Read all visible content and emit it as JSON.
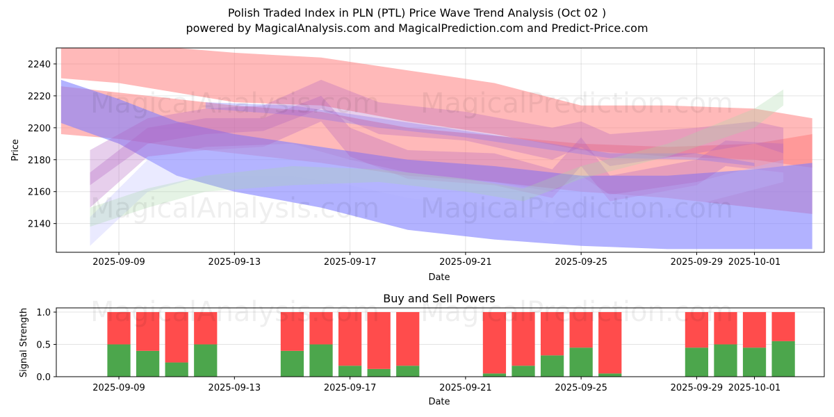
{
  "title": "Polish Traded Index in PLN (PTL) Price Wave Trend Analysis (Oct 02 )",
  "subtitle": "powered by MagicalAnalysis.com and MagicalPrediction.com and Predict-Price.com",
  "watermarks": [
    "MagicalAnalysis.com",
    "MagicalPrediction.com"
  ],
  "colors": {
    "sell": "#ff4c4c",
    "buy": "#4ca64c",
    "band_red": "#ff7f7f",
    "band_blue": "#7f7fff",
    "band_green": "#a8d8a8"
  },
  "chart_data": [
    {
      "type": "area",
      "title": "",
      "xlabel": "Date",
      "ylabel": "Price",
      "ylim": [
        2122,
        2250
      ],
      "xlim": [
        "2025-09-06T20:00",
        "2025-10-03T10:00"
      ],
      "grid": true,
      "x_ticks": [
        "2025-09-09",
        "2025-09-13",
        "2025-09-17",
        "2025-09-21",
        "2025-09-25",
        "2025-09-29",
        "2025-10-01"
      ],
      "y_ticks": [
        2140,
        2160,
        2180,
        2200,
        2220,
        2240
      ],
      "series": [
        {
          "name": "red-band-top",
          "color": "red",
          "alpha": 0.55,
          "x": [
            "2025-09-07",
            "2025-09-09",
            "2025-09-11",
            "2025-09-13",
            "2025-09-16",
            "2025-09-19",
            "2025-09-22",
            "2025-09-25",
            "2025-09-28",
            "2025-10-01",
            "2025-10-03"
          ],
          "upper": [
            2252,
            2251,
            2250,
            2247,
            2244,
            2236,
            2228,
            2214,
            2214,
            2212,
            2206
          ],
          "lower": [
            2231,
            2228,
            2222,
            2216,
            2214,
            2204,
            2196,
            2186,
            2182,
            2180,
            2175
          ]
        },
        {
          "name": "red-band-mid",
          "color": "red",
          "alpha": 0.55,
          "x": [
            "2025-09-07",
            "2025-09-09",
            "2025-09-11",
            "2025-09-13",
            "2025-09-16",
            "2025-09-19",
            "2025-09-22",
            "2025-09-25",
            "2025-09-28",
            "2025-10-01",
            "2025-10-03"
          ],
          "upper": [
            2226,
            2222,
            2218,
            2214,
            2210,
            2200,
            2195,
            2190,
            2188,
            2190,
            2196
          ],
          "lower": [
            2196,
            2193,
            2188,
            2184,
            2178,
            2170,
            2166,
            2160,
            2156,
            2150,
            2146
          ]
        },
        {
          "name": "blue-band-main",
          "color": "blue",
          "alpha": 0.6,
          "x": [
            "2025-09-07",
            "2025-09-09",
            "2025-09-11",
            "2025-09-13",
            "2025-09-16",
            "2025-09-19",
            "2025-09-22",
            "2025-09-25",
            "2025-09-28",
            "2025-10-01",
            "2025-10-03"
          ],
          "upper": [
            2230,
            2218,
            2204,
            2196,
            2188,
            2180,
            2176,
            2170,
            2170,
            2174,
            2178
          ],
          "lower": [
            2203,
            2190,
            2170,
            2160,
            2150,
            2136,
            2130,
            2126,
            2124,
            2124,
            2124
          ]
        },
        {
          "name": "blue-thin-band",
          "color": "blue",
          "alpha": 0.35,
          "x": [
            "2025-09-12",
            "2025-09-15",
            "2025-09-18",
            "2025-09-21",
            "2025-09-24",
            "2025-09-26",
            "2025-09-29",
            "2025-10-01"
          ],
          "upper": [
            2216,
            2214,
            2206,
            2198,
            2190,
            2184,
            2184,
            2178
          ],
          "lower": [
            2212,
            2208,
            2200,
            2194,
            2186,
            2181,
            2180,
            2176
          ]
        },
        {
          "name": "purple-wave-1",
          "color": "purple",
          "alpha": 0.3,
          "x": [
            "2025-09-08",
            "2025-09-10",
            "2025-09-12",
            "2025-09-14",
            "2025-09-16",
            "2025-09-18",
            "2025-09-21",
            "2025-09-24",
            "2025-09-25",
            "2025-09-26",
            "2025-09-29",
            "2025-10-01",
            "2025-10-02"
          ],
          "upper": [
            2186,
            2206,
            2212,
            2214,
            2230,
            2216,
            2210,
            2200,
            2204,
            2196,
            2200,
            2204,
            2200
          ],
          "lower": [
            2164,
            2190,
            2196,
            2198,
            2212,
            2196,
            2192,
            2180,
            2188,
            2176,
            2184,
            2190,
            2184
          ]
        },
        {
          "name": "purple-wave-2",
          "color": "purple",
          "alpha": 0.3,
          "x": [
            "2025-09-08",
            "2025-09-10",
            "2025-09-12",
            "2025-09-14",
            "2025-09-16",
            "2025-09-17",
            "2025-09-19",
            "2025-09-22",
            "2025-09-24",
            "2025-09-25",
            "2025-09-26",
            "2025-09-29",
            "2025-09-30",
            "2025-10-02"
          ],
          "upper": [
            2172,
            2200,
            2206,
            2206,
            2220,
            2200,
            2186,
            2184,
            2174,
            2194,
            2170,
            2180,
            2192,
            2190
          ],
          "lower": [
            2150,
            2182,
            2186,
            2188,
            2204,
            2182,
            2168,
            2164,
            2156,
            2176,
            2154,
            2164,
            2176,
            2172
          ]
        },
        {
          "name": "lavender-wave",
          "color": "lavender",
          "alpha": 0.3,
          "x": [
            "2025-09-08",
            "2025-09-10",
            "2025-09-12",
            "2025-09-15",
            "2025-09-17",
            "2025-09-19",
            "2025-09-22",
            "2025-09-24",
            "2025-09-25",
            "2025-09-26",
            "2025-09-29",
            "2025-10-02"
          ],
          "upper": [
            2144,
            2180,
            2188,
            2190,
            2180,
            2172,
            2166,
            2160,
            2170,
            2158,
            2166,
            2180
          ],
          "lower": [
            2126,
            2160,
            2170,
            2170,
            2164,
            2156,
            2150,
            2140,
            2156,
            2144,
            2152,
            2166
          ]
        },
        {
          "name": "green-wave",
          "color": "green",
          "alpha": 0.3,
          "x": [
            "2025-09-08",
            "2025-09-10",
            "2025-09-12",
            "2025-09-15",
            "2025-09-18",
            "2025-09-21",
            "2025-09-23",
            "2025-09-25",
            "2025-09-28",
            "2025-10-01",
            "2025-10-02"
          ],
          "upper": [
            2150,
            2162,
            2170,
            2176,
            2174,
            2168,
            2162,
            2176,
            2190,
            2212,
            2224
          ],
          "lower": [
            2138,
            2150,
            2160,
            2164,
            2166,
            2160,
            2154,
            2168,
            2182,
            2200,
            2214
          ]
        }
      ]
    },
    {
      "type": "bar",
      "title": "Buy and Sell Powers",
      "xlabel": "Date",
      "ylabel": "Signal Strength",
      "ylim": [
        0,
        1.05
      ],
      "y_ticks": [
        "0.0",
        "0.5",
        "1.0"
      ],
      "x_ticks": [
        "2025-09-09",
        "2025-09-13",
        "2025-09-17",
        "2025-09-21",
        "2025-09-25",
        "2025-09-29",
        "2025-10-01"
      ],
      "categories": [
        "2025-09-09",
        "2025-09-10",
        "2025-09-11",
        "2025-09-12",
        "2025-09-15",
        "2025-09-16",
        "2025-09-17",
        "2025-09-18",
        "2025-09-19",
        "2025-09-22",
        "2025-09-23",
        "2025-09-24",
        "2025-09-25",
        "2025-09-26",
        "2025-09-29",
        "2025-09-30",
        "2025-10-01",
        "2025-10-02"
      ],
      "series": [
        {
          "name": "Buy",
          "color": "green",
          "values": [
            0.5,
            0.4,
            0.22,
            0.5,
            0.4,
            0.5,
            0.17,
            0.12,
            0.17,
            0.05,
            0.17,
            0.33,
            0.45,
            0.05,
            0.45,
            0.5,
            0.45,
            0.55
          ]
        },
        {
          "name": "Sell",
          "color": "red",
          "values": [
            0.5,
            0.6,
            0.78,
            0.5,
            0.6,
            0.5,
            0.83,
            0.88,
            0.83,
            0.95,
            0.83,
            0.67,
            0.55,
            0.95,
            0.55,
            0.5,
            0.55,
            0.45
          ]
        }
      ]
    }
  ]
}
